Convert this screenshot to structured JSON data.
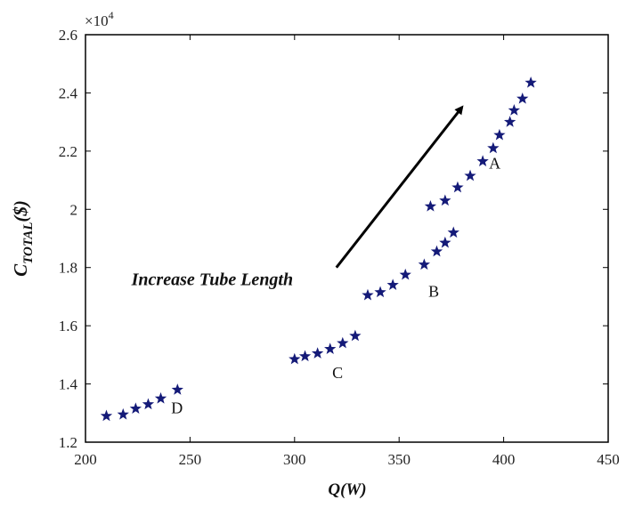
{
  "chart_data": {
    "type": "scatter",
    "title": "",
    "xlabel": "Q(W)",
    "ylabel_main": "C",
    "ylabel_sub": "TOTAL",
    "ylabel_unit": "($)",
    "y_multiplier_base": "×10",
    "y_multiplier_exp": "4",
    "xlim": [
      200,
      450
    ],
    "ylim": [
      1.2,
      2.6
    ],
    "x_ticks": [
      "200",
      "250",
      "300",
      "350",
      "400",
      "450"
    ],
    "y_ticks": [
      "1.2",
      "1.4",
      "1.6",
      "1.8",
      "2",
      "2.2",
      "2.4",
      "2.6"
    ],
    "grid": false,
    "marker": "star",
    "marker_color": "#141a78",
    "series": [
      {
        "label": "A",
        "label_at": [
          393,
          2.14
        ],
        "points": [
          [
            365,
            2.01
          ],
          [
            372,
            2.03
          ],
          [
            378,
            2.075
          ],
          [
            384,
            2.115
          ],
          [
            390,
            2.165
          ],
          [
            395,
            2.21
          ],
          [
            398,
            2.255
          ],
          [
            403,
            2.3
          ],
          [
            405,
            2.34
          ],
          [
            409,
            2.38
          ],
          [
            413,
            2.435
          ]
        ]
      },
      {
        "label": "B",
        "label_at": [
          364,
          1.7
        ],
        "points": [
          [
            335,
            1.705
          ],
          [
            341,
            1.715
          ],
          [
            347,
            1.74
          ],
          [
            353,
            1.775
          ],
          [
            362,
            1.81
          ],
          [
            368,
            1.855
          ],
          [
            372,
            1.885
          ],
          [
            376,
            1.92
          ]
        ]
      },
      {
        "label": "C",
        "label_at": [
          318,
          1.42
        ],
        "points": [
          [
            300,
            1.485
          ],
          [
            305,
            1.495
          ],
          [
            311,
            1.505
          ],
          [
            317,
            1.52
          ],
          [
            323,
            1.54
          ],
          [
            329,
            1.565
          ]
        ]
      },
      {
        "label": "D",
        "label_at": [
          241,
          1.3
        ],
        "points": [
          [
            210,
            1.29
          ],
          [
            218,
            1.295
          ],
          [
            224,
            1.315
          ],
          [
            230,
            1.33
          ],
          [
            236,
            1.35
          ],
          [
            244,
            1.38
          ]
        ]
      }
    ],
    "annotation": {
      "text": "Increase Tube Length",
      "text_at": [
        222,
        1.74
      ],
      "arrow_from": [
        320,
        1.8
      ],
      "arrow_to": [
        380,
        2.35
      ]
    }
  }
}
